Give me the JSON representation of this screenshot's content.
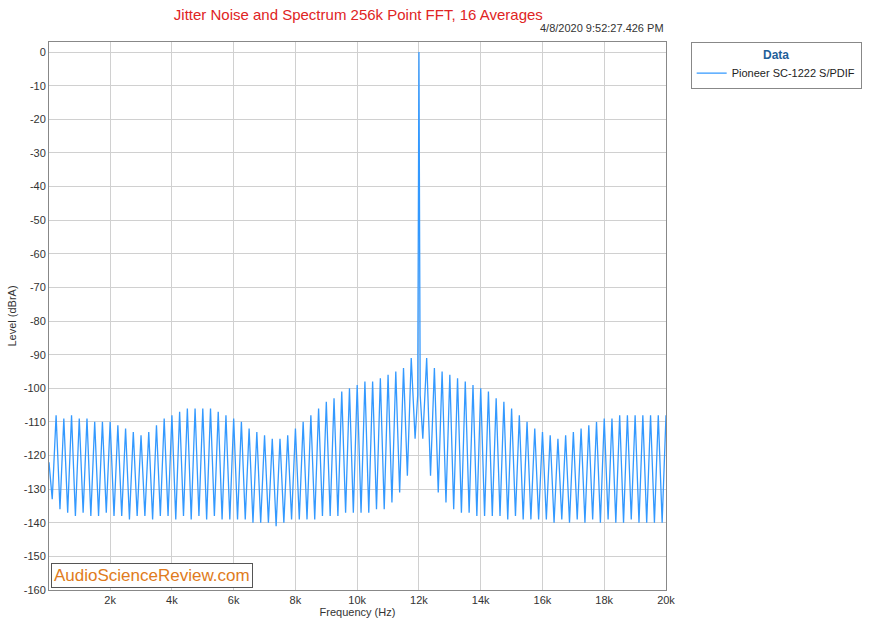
{
  "chart_data": {
    "type": "line",
    "title": "Jitter Noise and Spectrum 256k Point FFT, 16 Averages",
    "subtitle": "4/8/2020 9:52:27.426 PM",
    "x_label": "Frequency (Hz)",
    "y_label": "Level (dBrA)",
    "legend_title": "Data",
    "annotations": [
      "AudioScienceReview.com"
    ],
    "x": [
      20,
      125,
      250,
      375,
      500,
      625,
      750,
      875,
      1000,
      1125,
      1250,
      1375,
      1500,
      1625,
      1750,
      1875,
      2000,
      2125,
      2250,
      2375,
      2500,
      2625,
      2750,
      2875,
      3000,
      3125,
      3250,
      3375,
      3500,
      3625,
      3750,
      3875,
      4000,
      4125,
      4250,
      4375,
      4500,
      4625,
      4750,
      4875,
      5000,
      5125,
      5250,
      5375,
      5500,
      5625,
      5750,
      5875,
      6000,
      6125,
      6250,
      6375,
      6500,
      6625,
      6750,
      6875,
      7000,
      7125,
      7250,
      7375,
      7500,
      7625,
      7750,
      7875,
      8000,
      8125,
      8250,
      8375,
      8500,
      8625,
      8750,
      8875,
      9000,
      9125,
      9250,
      9375,
      9500,
      9625,
      9750,
      9875,
      10000,
      10125,
      10250,
      10375,
      10500,
      10625,
      10750,
      10875,
      11000,
      11125,
      11250,
      11375,
      11500,
      11625,
      11750,
      11875,
      11960,
      12000,
      12040,
      12125,
      12250,
      12375,
      12500,
      12625,
      12750,
      12875,
      13000,
      13125,
      13250,
      13375,
      13500,
      13625,
      13750,
      13875,
      14000,
      14125,
      14250,
      14375,
      14500,
      14625,
      14750,
      14875,
      15000,
      15125,
      15250,
      15375,
      15500,
      15625,
      15750,
      15875,
      16000,
      16125,
      16250,
      16375,
      16500,
      16625,
      16750,
      16875,
      17000,
      17125,
      17250,
      17375,
      17500,
      17625,
      17750,
      17875,
      18000,
      18125,
      18250,
      18375,
      18500,
      18625,
      18750,
      18875,
      19000,
      19125,
      19250,
      19375,
      19500,
      19625,
      19750,
      19875,
      20000
    ],
    "series": [
      {
        "name": "Pioneer SC-1222 S/PDIF",
        "color": "#3399ff",
        "values": [
          -122,
          -133,
          -108,
          -136,
          -109,
          -137,
          -108,
          -138,
          -109,
          -137,
          -109,
          -138,
          -110,
          -138,
          -110,
          -137,
          -110,
          -138,
          -111,
          -138,
          -112,
          -139,
          -113,
          -138,
          -114,
          -138,
          -113,
          -139,
          -111,
          -138,
          -109,
          -138,
          -108,
          -139,
          -107,
          -138,
          -106,
          -139,
          -106,
          -138,
          -106,
          -139,
          -106,
          -138,
          -107,
          -139,
          -108,
          -139,
          -109,
          -139,
          -110,
          -139,
          -112,
          -140,
          -113,
          -140,
          -114,
          -140,
          -115,
          -141,
          -115,
          -140,
          -114,
          -139,
          -112,
          -139,
          -110,
          -139,
          -108,
          -139,
          -106,
          -138,
          -104,
          -138,
          -103,
          -138,
          -101,
          -137,
          -100,
          -137,
          -99,
          -137,
          -98,
          -137,
          -98,
          -136,
          -97,
          -136,
          -96,
          -134,
          -95,
          -131,
          -94,
          -126,
          -91,
          -115,
          -102,
          0,
          -102,
          -115,
          -91,
          -126,
          -94,
          -131,
          -95,
          -134,
          -96,
          -136,
          -97,
          -137,
          -98,
          -137,
          -99,
          -138,
          -100,
          -138,
          -101,
          -138,
          -103,
          -138,
          -104,
          -139,
          -106,
          -138,
          -108,
          -139,
          -110,
          -139,
          -112,
          -139,
          -113,
          -139,
          -114,
          -140,
          -115,
          -139,
          -114,
          -140,
          -113,
          -139,
          -112,
          -140,
          -111,
          -139,
          -110,
          -140,
          -109,
          -139,
          -109,
          -140,
          -108,
          -140,
          -108,
          -139,
          -108,
          -140,
          -108,
          -140,
          -108,
          -140,
          -108,
          -140,
          -108
        ]
      }
    ],
    "xlim": [
      20,
      20000
    ],
    "xticks": [
      {
        "value": 2000,
        "label": "2k"
      },
      {
        "value": 4000,
        "label": "4k"
      },
      {
        "value": 6000,
        "label": "6k"
      },
      {
        "value": 8000,
        "label": "8k"
      },
      {
        "value": 10000,
        "label": "10k"
      },
      {
        "value": 12000,
        "label": "12k"
      },
      {
        "value": 14000,
        "label": "14k"
      },
      {
        "value": 16000,
        "label": "16k"
      },
      {
        "value": 18000,
        "label": "18k"
      },
      {
        "value": 20000,
        "label": "20k"
      }
    ],
    "ylim": [
      -160,
      3
    ],
    "yticks": [
      -160,
      -150,
      -140,
      -130,
      -120,
      -110,
      -100,
      -90,
      -80,
      -70,
      -60,
      -50,
      -40,
      -30,
      -20,
      -10,
      0
    ],
    "grid": true,
    "legend": "upper right"
  }
}
